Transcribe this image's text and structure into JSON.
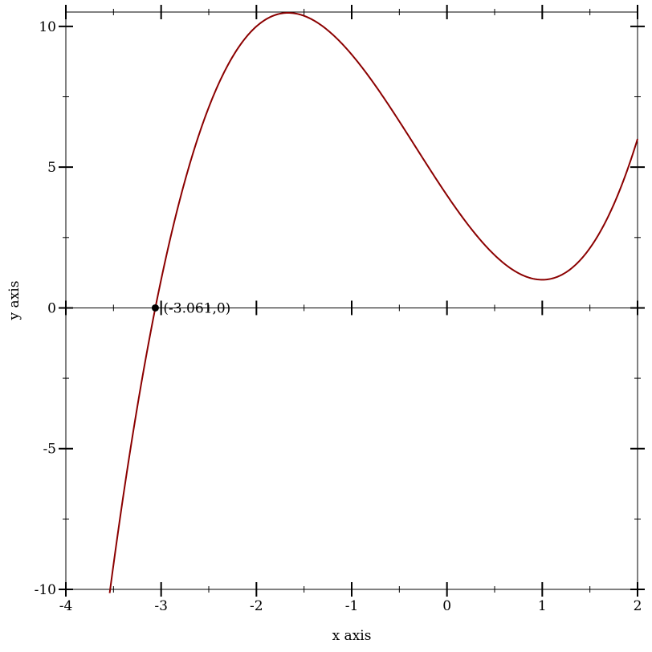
{
  "chart_data": {
    "type": "line",
    "title": "",
    "xlabel": "x axis",
    "ylabel": "y axis",
    "xlim": [
      -4,
      2
    ],
    "ylim": [
      -10,
      10.51
    ],
    "x_ticks": [
      -4,
      -3,
      -2,
      -1,
      0,
      1,
      2
    ],
    "y_ticks": [
      -10,
      -5,
      0,
      5,
      10
    ],
    "x_tick_labels": [
      "-4",
      "-3",
      "-2",
      "-1",
      "0",
      "1",
      "2"
    ],
    "y_tick_labels": [
      "-10",
      "-5",
      "0",
      "5",
      "10"
    ],
    "grid": false,
    "series": [
      {
        "function": "x^3 + x^2 - 5x + 4",
        "color": "#8b0000",
        "x_range": [
          -3.54,
          2
        ]
      }
    ],
    "x_axis_line_at_y": 0,
    "point": {
      "x": -3.061,
      "y": 0,
      "label": "(-3.061,0)",
      "color": "#000000"
    }
  }
}
